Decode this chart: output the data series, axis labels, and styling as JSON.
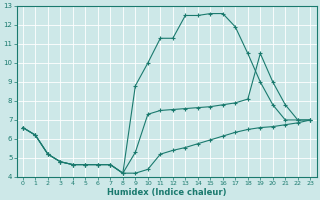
{
  "xlabel": "Humidex (Indice chaleur)",
  "xlim": [
    -0.5,
    23.5
  ],
  "ylim": [
    4,
    13
  ],
  "xticks": [
    0,
    1,
    2,
    3,
    4,
    5,
    6,
    7,
    8,
    9,
    10,
    11,
    12,
    13,
    14,
    15,
    16,
    17,
    18,
    19,
    20,
    21,
    22,
    23
  ],
  "yticks": [
    4,
    5,
    6,
    7,
    8,
    9,
    10,
    11,
    12,
    13
  ],
  "color": "#1a7a6e",
  "bg_color": "#cde8e8",
  "line1_x": [
    0,
    1,
    2,
    3,
    4,
    5,
    6,
    7,
    8,
    9,
    10,
    11,
    12,
    13,
    14,
    15,
    16,
    17,
    18,
    19,
    20,
    21,
    22,
    23
  ],
  "line1_y": [
    6.6,
    6.2,
    5.2,
    4.8,
    4.65,
    4.65,
    4.65,
    4.65,
    4.2,
    4.2,
    4.4,
    5.2,
    5.4,
    5.55,
    5.75,
    5.95,
    6.15,
    6.35,
    6.5,
    6.6,
    6.65,
    6.75,
    6.85,
    7.0
  ],
  "line2_x": [
    0,
    1,
    2,
    3,
    4,
    5,
    6,
    7,
    8,
    9,
    10,
    11,
    12,
    13,
    14,
    15,
    16,
    17,
    18,
    19,
    20,
    21,
    22,
    23
  ],
  "line2_y": [
    6.6,
    6.2,
    5.2,
    4.8,
    4.65,
    4.65,
    4.65,
    4.65,
    4.2,
    5.3,
    7.3,
    7.5,
    7.55,
    7.6,
    7.65,
    7.7,
    7.8,
    7.9,
    8.1,
    10.5,
    9.0,
    7.8,
    7.0,
    7.0
  ],
  "line3_x": [
    0,
    1,
    2,
    3,
    4,
    5,
    6,
    7,
    8,
    9,
    10,
    11,
    12,
    13,
    14,
    15,
    16,
    17,
    18,
    19,
    20,
    21,
    22,
    23
  ],
  "line3_y": [
    6.6,
    6.2,
    5.2,
    4.8,
    4.65,
    4.65,
    4.65,
    4.65,
    4.2,
    8.8,
    10.0,
    11.3,
    11.3,
    12.5,
    12.5,
    12.6,
    12.6,
    11.9,
    10.5,
    9.0,
    7.8,
    7.0,
    7.0,
    7.0
  ]
}
